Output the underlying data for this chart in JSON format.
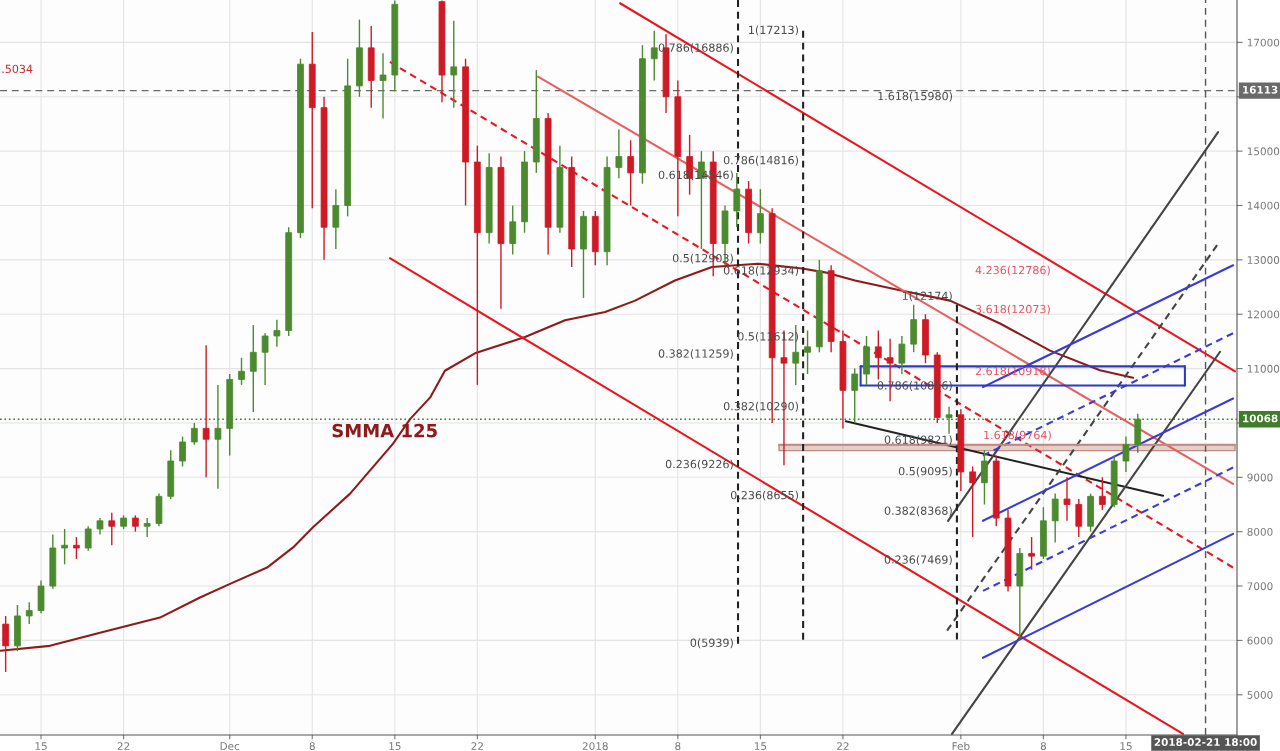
{
  "chart_data": {
    "type": "candlestick",
    "xlim": [
      "2017-11-11T12:30",
      "2018-02-24T10:00"
    ],
    "ylim": [
      4260,
      17780
    ],
    "xticks": [
      {
        "value": "2017-11-15",
        "label": "15"
      },
      {
        "value": "2017-11-22",
        "label": "22"
      },
      {
        "value": "2017-12-01",
        "label": "Dec"
      },
      {
        "value": "2017-12-08",
        "label": "8"
      },
      {
        "value": "2017-12-15",
        "label": "15"
      },
      {
        "value": "2017-12-22",
        "label": "22"
      },
      {
        "value": "2018-01-01",
        "label": "2018"
      },
      {
        "value": "2018-01-08",
        "label": "8"
      },
      {
        "value": "2018-01-15",
        "label": "15"
      },
      {
        "value": "2018-01-22",
        "label": "22"
      },
      {
        "value": "2018-02-01",
        "label": "Feb"
      },
      {
        "value": "2018-02-08",
        "label": "8"
      },
      {
        "value": "2018-02-15",
        "label": "15"
      }
    ],
    "yticks": [
      5000,
      6000,
      7000,
      8000,
      9000,
      {
        "value": 10000,
        "label": null
      },
      11000,
      12000,
      13000,
      14000,
      15000,
      {
        "value": 16000,
        "label": null
      },
      17000
    ],
    "grid": true,
    "series": [
      {
        "color": "#4b8a2e",
        "x": [
          "2017-11-13",
          "2017-11-14",
          "2017-11-15",
          "2017-11-16",
          "2017-11-17",
          "2017-11-19",
          "2017-11-20",
          "2017-11-22",
          "2017-11-24",
          "2017-11-25",
          "2017-11-26",
          "2017-11-27",
          "2017-11-28",
          "2017-11-30",
          "2017-12-01",
          "2017-12-02",
          "2017-12-03",
          "2017-12-04",
          "2017-12-05",
          "2017-12-06",
          "2017-12-07",
          "2017-12-10",
          "2017-12-11",
          "2017-12-12",
          "2017-12-14",
          "2017-12-15",
          "2017-12-20",
          "2017-12-23",
          "2017-12-25",
          "2017-12-26",
          "2017-12-27",
          "2017-12-29",
          "2017-12-31",
          "2018-01-02",
          "2018-01-03",
          "2018-01-05",
          "2018-01-06",
          "2018-01-10",
          "2018-01-12",
          "2018-01-13",
          "2018-01-15",
          "2018-01-18",
          "2018-01-19",
          "2018-01-20",
          "2018-01-23",
          "2018-01-24",
          "2018-01-27",
          "2018-01-28",
          "2018-01-31",
          "2018-02-03",
          "2018-02-06",
          "2018-02-08",
          "2018-02-09",
          "2018-02-12",
          "2018-02-14",
          "2018-02-15",
          "2018-02-16"
        ],
        "ohlc": [
          [
            5900,
            6650,
            5800,
            6450
          ],
          [
            6450,
            6700,
            6300,
            6550
          ],
          [
            6550,
            7100,
            6500,
            7000
          ],
          [
            7000,
            7950,
            6950,
            7700
          ],
          [
            7700,
            8050,
            7400,
            7750
          ],
          [
            7700,
            8100,
            7650,
            8050
          ],
          [
            8050,
            8250,
            7950,
            8200
          ],
          [
            8100,
            8300,
            8050,
            8250
          ],
          [
            8100,
            8250,
            7900,
            8150
          ],
          [
            8150,
            8700,
            8100,
            8650
          ],
          [
            8650,
            9500,
            8600,
            9300
          ],
          [
            9300,
            9750,
            9200,
            9650
          ],
          [
            9650,
            10000,
            9600,
            9900
          ],
          [
            9700,
            10700,
            8790,
            9900
          ],
          [
            9900,
            10900,
            9400,
            10800
          ],
          [
            10800,
            11200,
            10700,
            10950
          ],
          [
            10950,
            11800,
            10200,
            11300
          ],
          [
            11300,
            11650,
            10700,
            11600
          ],
          [
            11600,
            11900,
            11400,
            11700
          ],
          [
            11700,
            13600,
            11600,
            13500
          ],
          [
            13500,
            16700,
            13400,
            16600
          ],
          [
            13600,
            14300,
            13200,
            14000
          ],
          [
            14000,
            16700,
            13800,
            16200
          ],
          [
            16200,
            17420,
            16000,
            16900
          ],
          [
            16300,
            16800,
            15600,
            16400
          ],
          [
            16400,
            17770,
            16100,
            17700
          ],
          [
            16400,
            17400,
            15800,
            16550
          ],
          [
            13500,
            14960,
            13300,
            14700
          ],
          [
            13300,
            14000,
            13100,
            13700
          ],
          [
            13700,
            15000,
            13500,
            14800
          ],
          [
            14800,
            16490,
            14600,
            15600
          ],
          [
            13600,
            15100,
            13500,
            14700
          ],
          [
            13200,
            13900,
            12300,
            13800
          ],
          [
            13150,
            14900,
            12900,
            14700
          ],
          [
            14700,
            15400,
            14500,
            14900
          ],
          [
            14600,
            16950,
            14400,
            16700
          ],
          [
            16700,
            17213,
            16300,
            16900
          ],
          [
            14500,
            15000,
            13200,
            14800
          ],
          [
            13300,
            14000,
            12900,
            13900
          ],
          [
            13900,
            14600,
            13600,
            14300
          ],
          [
            13500,
            14300,
            13300,
            13850
          ],
          [
            11100,
            11800,
            10700,
            11300
          ],
          [
            11300,
            11700,
            10900,
            11400
          ],
          [
            11400,
            13000,
            11300,
            12800
          ],
          [
            10600,
            11000,
            10000,
            10900
          ],
          [
            10900,
            11600,
            10700,
            11400
          ],
          [
            11100,
            11600,
            10900,
            11450
          ],
          [
            11450,
            12174,
            11300,
            11900
          ],
          [
            10100,
            10300,
            9800,
            10150
          ],
          [
            8900,
            9500,
            8500,
            9300
          ],
          [
            7000,
            7700,
            6020,
            7600
          ],
          [
            7550,
            8450,
            7500,
            8200
          ],
          [
            8200,
            8700,
            7800,
            8600
          ],
          [
            8100,
            8700,
            8000,
            8650
          ],
          [
            8500,
            9400,
            8450,
            9300
          ],
          [
            9300,
            9750,
            9100,
            9600
          ],
          [
            9600,
            10170,
            9450,
            10068
          ]
        ]
      },
      {
        "color": "#cf1a26",
        "x": [
          "2017-11-12",
          "2017-11-18",
          "2017-11-21",
          "2017-11-23",
          "2017-11-29",
          "2017-12-08",
          "2017-12-09",
          "2017-12-13",
          "2017-12-19",
          "2017-12-21",
          "2017-12-22",
          "2017-12-24",
          "2017-12-28",
          "2017-12-30",
          "2018-01-01",
          "2018-01-04",
          "2018-01-07",
          "2018-01-08",
          "2018-01-09",
          "2018-01-11",
          "2018-01-14",
          "2018-01-16",
          "2018-01-17",
          "2018-01-21",
          "2018-01-22",
          "2018-01-25",
          "2018-01-26",
          "2018-01-29",
          "2018-01-30",
          "2018-02-01",
          "2018-02-02",
          "2018-02-04",
          "2018-02-05",
          "2018-02-07",
          "2018-02-10",
          "2018-02-11",
          "2018-02-13"
        ],
        "ohlc": [
          [
            6300,
            6450,
            5420,
            5900
          ],
          [
            7750,
            7900,
            7500,
            7700
          ],
          [
            8200,
            8350,
            7750,
            8100
          ],
          [
            8250,
            8300,
            8000,
            8100
          ],
          [
            9900,
            11430,
            9000,
            9700
          ],
          [
            16600,
            17190,
            13950,
            15800
          ],
          [
            15800,
            16000,
            13000,
            13600
          ],
          [
            16900,
            17300,
            15800,
            16300
          ],
          [
            17750,
            17770,
            15900,
            16400
          ],
          [
            16550,
            16700,
            14000,
            14800
          ],
          [
            14800,
            15100,
            10700,
            13500
          ],
          [
            14700,
            14900,
            12100,
            13300
          ],
          [
            15600,
            15700,
            13100,
            13600
          ],
          [
            14700,
            14900,
            12870,
            13200
          ],
          [
            13800,
            13900,
            12900,
            13150
          ],
          [
            14900,
            15200,
            14000,
            14600
          ],
          [
            16900,
            17150,
            15700,
            16000
          ],
          [
            16000,
            16300,
            13800,
            14900
          ],
          [
            14900,
            15300,
            14200,
            14500
          ],
          [
            14800,
            15000,
            12700,
            13300
          ],
          [
            14300,
            14450,
            13300,
            13500
          ],
          [
            13850,
            13950,
            10000,
            11200
          ],
          [
            11200,
            11700,
            9220,
            11100
          ],
          [
            12800,
            12900,
            11300,
            11500
          ],
          [
            11500,
            11700,
            9900,
            10600
          ],
          [
            11400,
            11700,
            10800,
            11200
          ],
          [
            11200,
            11550,
            10400,
            11100
          ],
          [
            11900,
            12000,
            11100,
            11250
          ],
          [
            11250,
            11300,
            10000,
            10100
          ],
          [
            10150,
            10250,
            8750,
            9100
          ],
          [
            9100,
            9200,
            7900,
            8900
          ],
          [
            9300,
            9400,
            8100,
            8250
          ],
          [
            8250,
            8400,
            6900,
            7000
          ],
          [
            7600,
            7900,
            7300,
            7550
          ],
          [
            8600,
            9000,
            8200,
            8500
          ],
          [
            8500,
            8600,
            7900,
            8100
          ],
          [
            8650,
            9000,
            8400,
            8500
          ]
        ]
      },
      {
        "type": "line",
        "name": "SMMA 125",
        "color": "#8e1b1b",
        "x": [
          "2017-11-11T13:00",
          "2017-11-15T18:00",
          "2017-11-20T00:00",
          "2017-11-25T02:00",
          "2017-11-28T11:30",
          "2017-12-01T00:40",
          "2017-12-04T04:00",
          "2017-12-06T09:00",
          "2017-12-08T01:30",
          "2017-12-11T05:00",
          "2017-12-14T20:30",
          "2017-12-16T07:00",
          "2017-12-18T00:00",
          "2017-12-19T06:00",
          "2017-12-21T19:00",
          "2017-12-26T01:00",
          "2017-12-29T10:30",
          "2018-01-01T20:00",
          "2018-01-04T09:00",
          "2018-01-07T18:00",
          "2018-01-10T21:30",
          "2018-01-14T19:00",
          "2018-01-18T12:45",
          "2018-01-20T11:30",
          "2018-01-23T00:30",
          "2018-01-26T20:00",
          "2018-01-31T02:00",
          "2018-02-04T07:45",
          "2018-02-08T13:30",
          "2018-02-12T19:00",
          "2018-02-15T14:30"
        ],
        "values": [
          5810,
          5900,
          6140,
          6420,
          6790,
          7040,
          7340,
          7710,
          8080,
          8700,
          9620,
          10070,
          10470,
          10960,
          11280,
          11580,
          11890,
          12040,
          12250,
          12620,
          12870,
          12930,
          12840,
          12770,
          12620,
          12440,
          12250,
          11830,
          11330,
          10970,
          10830
        ]
      },
      {
        "type": "line",
        "color": "#e8171f",
        "x": [
          "2018-01-03T02:30",
          "2018-02-24T06:00"
        ],
        "values": [
          17720,
          10950
        ]
      },
      {
        "type": "line",
        "color": "#e8171f",
        "x": [
          "2017-12-14T14:00",
          "2018-02-19T20:00"
        ],
        "values": [
          13030,
          4280
        ]
      },
      {
        "type": "line",
        "color": "#e8171f",
        "line_style": "dashed",
        "x": [
          "2017-12-14T14:00",
          "2018-02-24T02:00"
        ],
        "values": [
          16640,
          7340
        ]
      },
      {
        "type": "line",
        "color": "#e86060",
        "x": [
          "2017-12-27T03:30",
          "2018-02-24T02:00"
        ],
        "values": [
          16370,
          8880
        ]
      },
      {
        "type": "line",
        "color": "#222222",
        "x": [
          "2018-01-22T06:00",
          "2018-02-18T03:30"
        ],
        "values": [
          10030,
          8660
        ]
      },
      {
        "type": "line",
        "color": "#444444",
        "x": [
          "2018-01-30T22:00",
          "2018-02-22T19:30"
        ],
        "values": [
          8200,
          15350
        ]
      },
      {
        "type": "line",
        "color": "#444444",
        "x": [
          "2018-01-31T06:00",
          "2018-02-22T23:30"
        ],
        "values": [
          4280,
          11310
        ]
      },
      {
        "type": "line",
        "color": "#444444",
        "line_style": "dashed",
        "x": [
          "2018-01-30T20:00",
          "2018-02-22T17:30"
        ],
        "values": [
          6180,
          13270
        ]
      },
      {
        "type": "line",
        "color": "#3b3bd6",
        "x": [
          "2018-02-02T21:00",
          "2018-02-24T02:00"
        ],
        "values": [
          10660,
          12900
        ]
      },
      {
        "type": "line",
        "color": "#3b3bd6",
        "line_style": "dashed",
        "x": [
          "2018-02-02T21:00",
          "2018-02-24T02:00"
        ],
        "values": [
          9400,
          11650
        ]
      },
      {
        "type": "line",
        "color": "#3b3bd6",
        "x": [
          "2018-02-02T21:00",
          "2018-02-24T02:00"
        ],
        "values": [
          8200,
          10450
        ]
      },
      {
        "type": "line",
        "color": "#3b3bd6",
        "line_style": "dashed",
        "x": [
          "2018-02-02T21:00",
          "2018-02-24T02:00"
        ],
        "values": [
          6910,
          9180
        ]
      },
      {
        "type": "line",
        "color": "#3b3bd6",
        "x": [
          "2018-02-02T21:00",
          "2018-02-24T02:00"
        ],
        "values": [
          5680,
          7960
        ]
      },
      {
        "type": "line",
        "color": "#2f3ac4",
        "x": [
          "2018-01-23T12:00",
          "2018-02-20T00:00"
        ],
        "values": [
          11040,
          11040
        ]
      },
      {
        "type": "line",
        "color": "#2f3ac4",
        "x": [
          "2018-01-23T12:00",
          "2018-02-20T00:00"
        ],
        "values": [
          10690,
          10690
        ]
      },
      {
        "type": "line",
        "color": "#2f3ac4",
        "x": [
          "2018-01-23T12:00",
          "2018-01-23T12:00"
        ],
        "values": [
          10690,
          11040
        ]
      },
      {
        "type": "line",
        "color": "#2f3ac4",
        "x": [
          "2018-02-20T00:00",
          "2018-02-20T00:00"
        ],
        "values": [
          10690,
          11040
        ]
      },
      {
        "type": "line",
        "color": "#c08a80",
        "x": [
          "2018-01-16T14:00",
          "2018-02-24T06:00"
        ],
        "values": [
          9600,
          9600
        ],
        "lower": [
          9490,
          9490
        ],
        "upper": [
          9600,
          9600
        ]
      },
      {
        "type": "line",
        "color": "#222222",
        "line_style": "dashed",
        "x": [
          "2018-01-13T02:30",
          "2018-01-13T02:30"
        ],
        "values": [
          17780,
          5939
        ]
      },
      {
        "type": "line",
        "color": "#222222",
        "line_style": "dashed",
        "x": [
          "2018-01-18T15:00",
          "2018-01-18T15:00"
        ],
        "values": [
          17213,
          6011
        ]
      },
      {
        "type": "line",
        "color": "#222222",
        "line_style": "dashed",
        "x": [
          "2018-01-31T16:00",
          "2018-01-31T16:00"
        ],
        "values": [
          12174,
          6015
        ]
      }
    ],
    "ref_lines": [
      {
        "axis": "y",
        "value": 16113,
        "label": "16113",
        "color": "#6a6a6a",
        "line_style": "dashed"
      },
      {
        "axis": "y",
        "value": 10068,
        "label": "10068",
        "color": "#3f7d2b",
        "line_style": "dotted"
      },
      {
        "axis": "x",
        "value": "2018-02-21T18:00",
        "label": "2018-02-21 18:00",
        "color": "#555555",
        "line_style": "dashed"
      }
    ],
    "annotations": [
      {
        "text": "0.786(16886)",
        "x": "2018-01-13T02:30",
        "y": 16886
      },
      {
        "text": "0.618(14546)",
        "x": "2018-01-13T02:30",
        "y": 14546
      },
      {
        "text": "0.5(12903)",
        "x": "2018-01-13T02:30",
        "y": 12903
      },
      {
        "text": "0.382(11259)",
        "x": "2018-01-13T02:30",
        "y": 11259
      },
      {
        "text": "0.236(9226)",
        "x": "2018-01-13T02:30",
        "y": 9226
      },
      {
        "text": "0(5939)",
        "x": "2018-01-13T02:30",
        "y": 5939
      },
      {
        "text": "1(17213)",
        "x": "2018-01-18T15:00",
        "y": 17213
      },
      {
        "text": "0.786(14816)",
        "x": "2018-01-18T15:00",
        "y": 14816
      },
      {
        "text": "0.618(12934)",
        "x": "2018-01-18T15:00",
        "y": 12934
      },
      {
        "text": "0.5(11612)",
        "x": "2018-01-18T15:00",
        "y": 11612
      },
      {
        "text": "0.382(10290)",
        "x": "2018-01-18T15:00",
        "y": 10290
      },
      {
        "text": "0.236(8655)",
        "x": "2018-01-18T15:00",
        "y": 8655
      },
      {
        "text": "1(12174)",
        "x": "2018-01-31T16:00",
        "y": 12174
      },
      {
        "text": "0.786(10856)",
        "x": "2018-01-31T16:00",
        "y": 10856
      },
      {
        "text": "0.618(9821)",
        "x": "2018-01-31T16:00",
        "y": 9821
      },
      {
        "text": "0.5(9095)",
        "x": "2018-01-31T16:00",
        "y": 9095
      },
      {
        "text": "0.382(8368)",
        "x": "2018-01-31T16:00",
        "y": 8368
      },
      {
        "text": "0.236(7469)",
        "x": "2018-01-31T16:00",
        "y": 7469
      },
      ".5034",
      "1.618(15980)",
      "4.236(12786)",
      "3.618(12073)",
      "2.618(10918)",
      "1.618(9764)"
    ]
  }
}
